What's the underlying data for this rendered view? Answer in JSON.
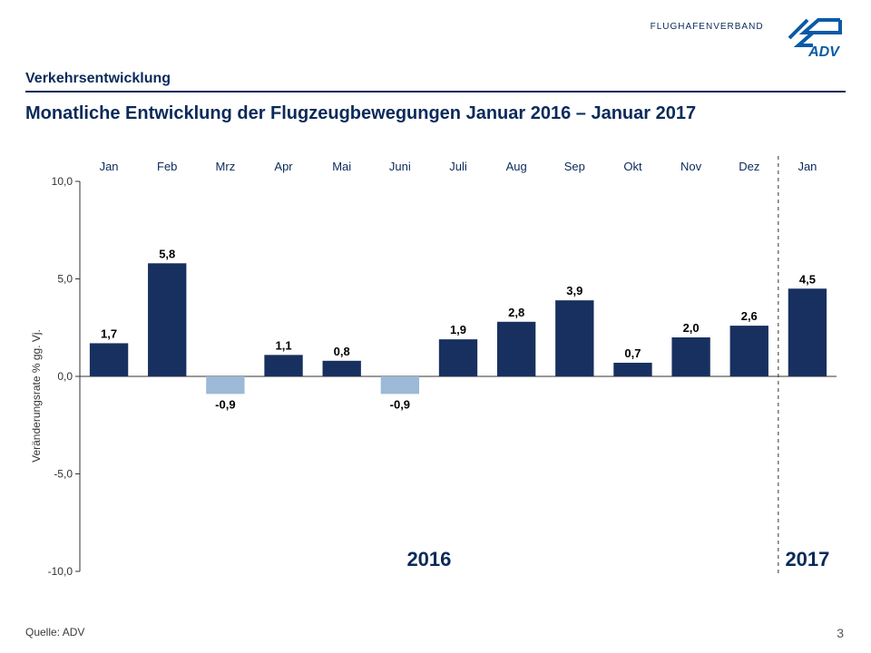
{
  "header": {
    "brand_text": "FLUGHAFENVERBAND",
    "brand_sub": "ADV",
    "brand_color": "#0b5aa6"
  },
  "section_label": "Verkehrsentwicklung",
  "chart_title": "Monatliche Entwicklung der Flugzeugbewegungen Januar 2016 – Januar 2017",
  "source_text": "Quelle: ADV",
  "page_number": "3",
  "chart": {
    "type": "bar",
    "ylabel": "Veränderungsrate % gg. Vj.",
    "ylim": [
      -10.0,
      10.0
    ],
    "ytick_step": 5.0,
    "ytick_labels": [
      "-10,0",
      "-5,0",
      "0,0",
      "5,0",
      "10,0"
    ],
    "axis_color": "#333333",
    "tick_fontsize": 12,
    "label_fontsize": 12,
    "value_label_fontsize": 13,
    "category_label_fontsize": 13,
    "bar_positive_color": "#18305f",
    "bar_negative_color": "#9cb9d8",
    "background_color": "#ffffff",
    "bar_width_ratio": 0.66,
    "separator_after_index": 11,
    "separator_style": "dashed",
    "separator_color": "#333333",
    "year_left_label": "2016",
    "year_right_label": "2017",
    "year_label_fontsize": 22,
    "categories": [
      "Jan",
      "Feb",
      "Mrz",
      "Apr",
      "Mai",
      "Juni",
      "Juli",
      "Aug",
      "Sep",
      "Okt",
      "Nov",
      "Dez",
      "Jan"
    ],
    "values": [
      1.7,
      5.8,
      -0.9,
      1.1,
      0.8,
      -0.9,
      1.9,
      2.8,
      3.9,
      0.7,
      2.0,
      2.6,
      4.5
    ],
    "value_labels": [
      "1,7",
      "5,8",
      "-0,9",
      "1,1",
      "0,8",
      "-0,9",
      "1,9",
      "2,8",
      "3,9",
      "0,7",
      "2,0",
      "2,6",
      "4,5"
    ]
  }
}
